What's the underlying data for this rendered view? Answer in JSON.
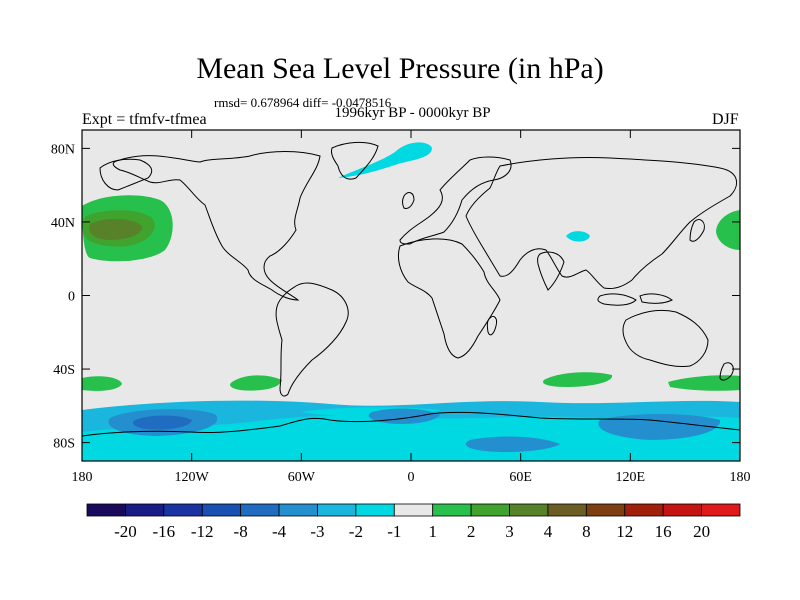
{
  "header": {
    "title": "Mean Sea Level Pressure (in hPa)",
    "stats": "rmsd= 0.678964 diff= -0.0478516",
    "period": "1996kyr BP - 0000kyr BP",
    "expt": "Expt = tfmfv-tfmea",
    "season": "DJF"
  },
  "map": {
    "lon_ticks": [
      "180",
      "120W",
      "60W",
      "0",
      "60E",
      "120E",
      "180"
    ],
    "lat_ticks": [
      "80N",
      "40N",
      "0",
      "40S",
      "80S"
    ],
    "background_color": "#e8e8e8",
    "coastline_color": "#000000"
  },
  "colorbar": {
    "colors": [
      "#1a0a5c",
      "#1a1c86",
      "#1b34a3",
      "#1a4fb3",
      "#1f6cc1",
      "#248fcf",
      "#1ab6dd",
      "#00d8e2",
      "#e8e8e8",
      "#27c04c",
      "#3fa32d",
      "#58822a",
      "#6b5e24",
      "#7d3f12",
      "#a0200c",
      "#c41414",
      "#e01a1a"
    ],
    "labels": [
      "-20",
      "-16",
      "-12",
      "-8",
      "-4",
      "-3",
      "-2",
      "-1",
      "1",
      "2",
      "3",
      "4",
      "8",
      "12",
      "16",
      "20"
    ]
  }
}
